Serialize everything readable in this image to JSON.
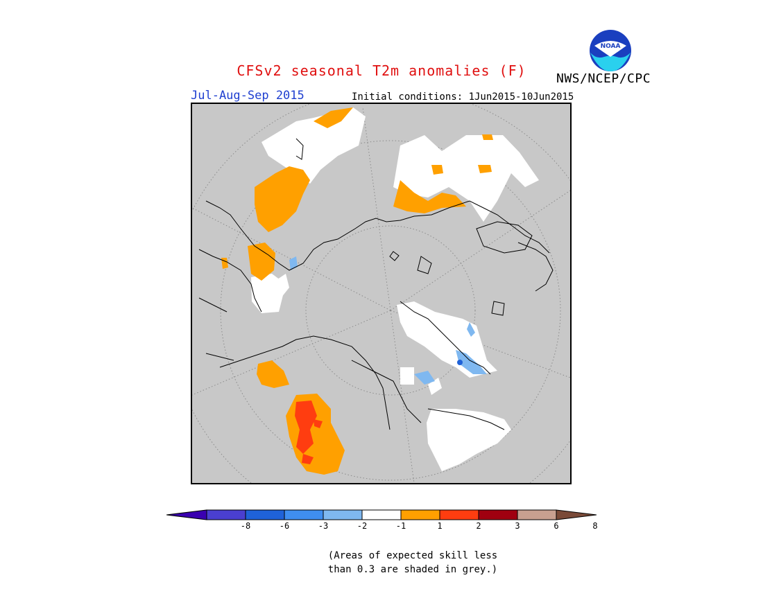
{
  "header": {
    "title": "CFSv2 seasonal T2m anomalies (F)",
    "season": "Jul-Aug-Sep 2015",
    "initial_conditions": "Initial conditions: 1Jun2015-10Jun2015",
    "agency": "NWS/NCEP/CPC",
    "logo_text": "NOAA"
  },
  "legend": {
    "ticks": [
      "-8",
      "-6",
      "-3",
      "-2",
      "-1",
      "1",
      "2",
      "3",
      "6",
      "8"
    ],
    "colors": [
      "#3a00b0",
      "#4a3fd0",
      "#1f62d8",
      "#3f8ef0",
      "#7fb8f0",
      "#ffffff",
      "#ffa000",
      "#ff3d10",
      "#a00010",
      "#c8a090",
      "#7a4a38"
    ]
  },
  "note": {
    "line1": "(Areas of expected skill less",
    "line2": "than 0.3 are shaded in grey.)"
  },
  "colors": {
    "title": "#e01010",
    "season": "#1f3fd0",
    "grey_mask": "#c8c8c8"
  }
}
